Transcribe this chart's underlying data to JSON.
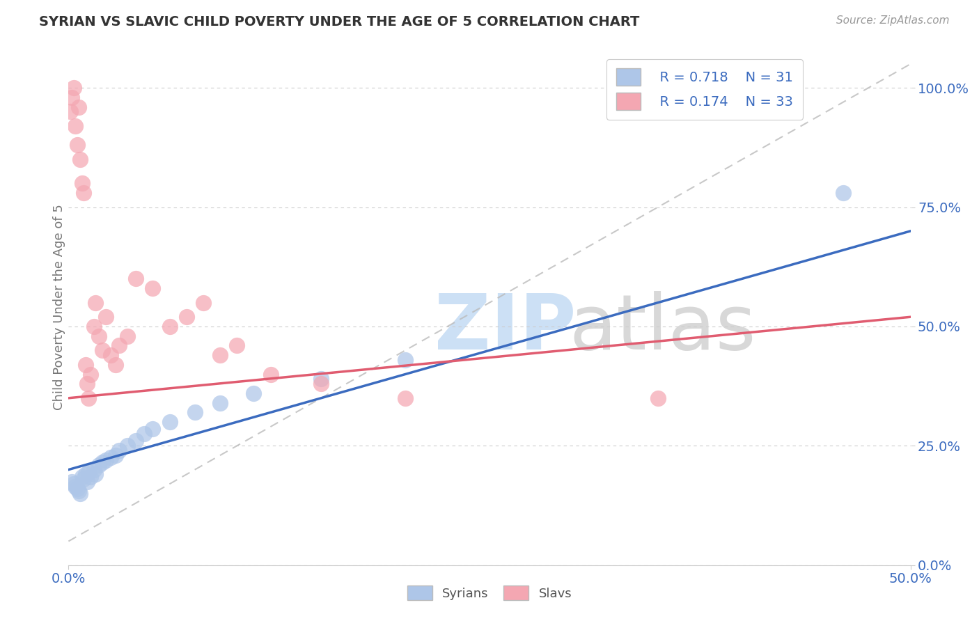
{
  "title": "SYRIAN VS SLAVIC CHILD POVERTY UNDER THE AGE OF 5 CORRELATION CHART",
  "source_text": "Source: ZipAtlas.com",
  "ylabel": "Child Poverty Under the Age of 5",
  "xlim": [
    0.0,
    0.5
  ],
  "ylim": [
    0.0,
    1.08
  ],
  "xtick_positions": [
    0.0,
    0.5
  ],
  "xtick_labels": [
    "0.0%",
    "50.0%"
  ],
  "ytick_positions": [
    0.0,
    0.25,
    0.5,
    0.75,
    1.0
  ],
  "ytick_labels": [
    "0.0%",
    "25.0%",
    "50.0%",
    "75.0%",
    "100.0%"
  ],
  "syrian_R": 0.718,
  "syrian_N": 31,
  "slavic_R": 0.174,
  "slavic_N": 33,
  "syrian_color": "#aec6e8",
  "slavic_color": "#f4a7b2",
  "syrian_line_color": "#3b6bbf",
  "slavic_line_color": "#e05c70",
  "background_color": "#ffffff",
  "grid_color": "#cccccc",
  "syrians_x": [
    0.002,
    0.003,
    0.004,
    0.005,
    0.006,
    0.007,
    0.008,
    0.009,
    0.01,
    0.011,
    0.012,
    0.013,
    0.015,
    0.016,
    0.018,
    0.02,
    0.022,
    0.025,
    0.028,
    0.03,
    0.035,
    0.04,
    0.045,
    0.05,
    0.06,
    0.075,
    0.09,
    0.11,
    0.15,
    0.2,
    0.46
  ],
  "syrians_y": [
    0.175,
    0.17,
    0.165,
    0.16,
    0.155,
    0.15,
    0.185,
    0.18,
    0.19,
    0.175,
    0.195,
    0.185,
    0.2,
    0.19,
    0.21,
    0.215,
    0.22,
    0.225,
    0.23,
    0.24,
    0.25,
    0.26,
    0.275,
    0.285,
    0.3,
    0.32,
    0.34,
    0.36,
    0.39,
    0.43,
    0.78
  ],
  "slavs_x": [
    0.001,
    0.002,
    0.003,
    0.004,
    0.005,
    0.006,
    0.007,
    0.008,
    0.009,
    0.01,
    0.011,
    0.012,
    0.013,
    0.015,
    0.016,
    0.018,
    0.02,
    0.022,
    0.025,
    0.028,
    0.03,
    0.035,
    0.04,
    0.05,
    0.06,
    0.07,
    0.08,
    0.09,
    0.1,
    0.12,
    0.15,
    0.2,
    0.35
  ],
  "slavs_y": [
    0.95,
    0.98,
    1.0,
    0.92,
    0.88,
    0.96,
    0.85,
    0.8,
    0.78,
    0.42,
    0.38,
    0.35,
    0.4,
    0.5,
    0.55,
    0.48,
    0.45,
    0.52,
    0.44,
    0.42,
    0.46,
    0.48,
    0.6,
    0.58,
    0.5,
    0.52,
    0.55,
    0.44,
    0.46,
    0.4,
    0.38,
    0.35,
    0.35
  ]
}
